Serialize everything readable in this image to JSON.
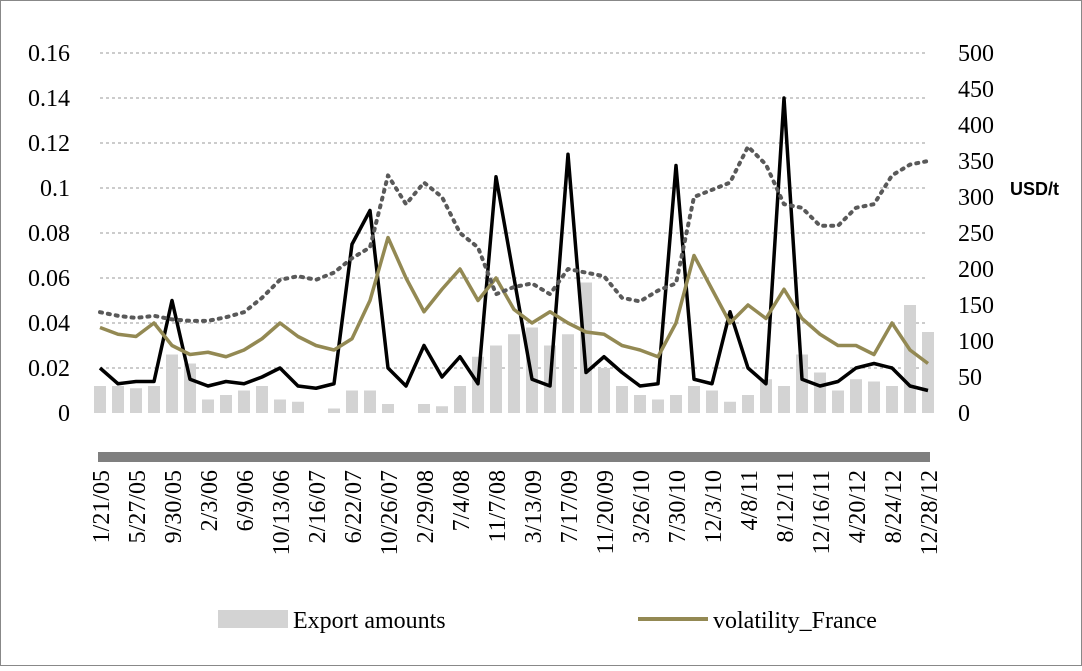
{
  "chart_data": {
    "type": "line",
    "y2label": "USD/t",
    "categories": [
      "1/21/05",
      null,
      "5/27/05",
      null,
      "9/30/05",
      null,
      "2/3/06",
      null,
      "6/9/06",
      null,
      "10/13/06",
      null,
      "2/16/07",
      null,
      "6/22/07",
      null,
      "10/26/07",
      null,
      "2/29/08",
      null,
      "7/4/08",
      null,
      "11/7/08",
      null,
      "3/13/09",
      null,
      "7/17/09",
      null,
      "11/20/09",
      null,
      "3/26/10",
      null,
      "7/30/10",
      null,
      "12/3/10",
      null,
      "4/8/11",
      null,
      "8/12/11",
      null,
      "12/16/11",
      null,
      "4/20/12",
      null,
      "8/24/12",
      null,
      "12/28/12"
    ],
    "ylim": [
      0,
      0.16
    ],
    "yticks": [
      0,
      0.02,
      0.04,
      0.06,
      0.08,
      0.1,
      0.12,
      0.14,
      0.16
    ],
    "y2lim": [
      0,
      500
    ],
    "y2ticks": [
      0,
      50,
      100,
      150,
      200,
      250,
      300,
      350,
      400,
      450,
      500
    ],
    "grid": true,
    "series": [
      {
        "name": "Export amounts",
        "type": "bar",
        "color": "#d3d3d3",
        "values": [
          0.012,
          0.012,
          0.011,
          0.012,
          0.026,
          0.022,
          0.006,
          0.008,
          0.01,
          0.012,
          0.006,
          0.005,
          0,
          0.002,
          0.01,
          0.01,
          0.004,
          0,
          0.004,
          0.003,
          0.012,
          0.025,
          0.03,
          0.035,
          0.038,
          0.03,
          0.035,
          0.058,
          0.02,
          0.012,
          0.008,
          0.006,
          0.008,
          0.012,
          0.01,
          0.005,
          0.008,
          0.015,
          0.012,
          0.026,
          0.018,
          0.01,
          0.015,
          0.014,
          0.012,
          0.048,
          0.036
        ]
      },
      {
        "type": "line",
        "color": "#000000",
        "values": [
          0.02,
          0.013,
          0.014,
          0.014,
          0.05,
          0.015,
          0.012,
          0.014,
          0.013,
          0.016,
          0.02,
          0.012,
          0.011,
          0.013,
          0.075,
          0.09,
          0.02,
          0.012,
          0.03,
          0.016,
          0.025,
          0.013,
          0.105,
          0.06,
          0.015,
          0.012,
          0.115,
          0.018,
          0.025,
          0.018,
          0.012,
          0.013,
          0.11,
          0.015,
          0.013,
          0.045,
          0.02,
          0.013,
          0.14,
          0.015,
          0.012,
          0.014,
          0.02,
          0.022,
          0.02,
          0.012,
          0.01
        ]
      },
      {
        "name": "volatility_France",
        "type": "line",
        "color": "#938953",
        "values": [
          0.038,
          0.035,
          0.034,
          0.04,
          0.03,
          0.026,
          0.027,
          0.025,
          0.028,
          0.033,
          0.04,
          0.034,
          0.03,
          0.028,
          0.033,
          0.05,
          0.078,
          0.06,
          0.045,
          0.055,
          0.064,
          0.05,
          0.06,
          0.046,
          0.04,
          0.045,
          0.04,
          0.036,
          0.035,
          0.03,
          0.028,
          0.025,
          0.04,
          0.07,
          0.055,
          0.04,
          0.048,
          0.042,
          0.055,
          0.042,
          0.035,
          0.03,
          0.03,
          0.026,
          0.04,
          0.028,
          0.022
        ]
      },
      {
        "type": "line",
        "axis": "y2",
        "style": "dotted",
        "color": "#595959",
        "values": [
          140,
          135,
          132,
          135,
          130,
          128,
          128,
          133,
          140,
          160,
          185,
          190,
          185,
          195,
          215,
          230,
          330,
          290,
          320,
          300,
          250,
          230,
          165,
          175,
          180,
          165,
          200,
          195,
          190,
          160,
          155,
          170,
          180,
          300,
          310,
          320,
          370,
          345,
          290,
          285,
          260,
          260,
          285,
          290,
          330,
          345,
          350
        ]
      }
    ]
  }
}
